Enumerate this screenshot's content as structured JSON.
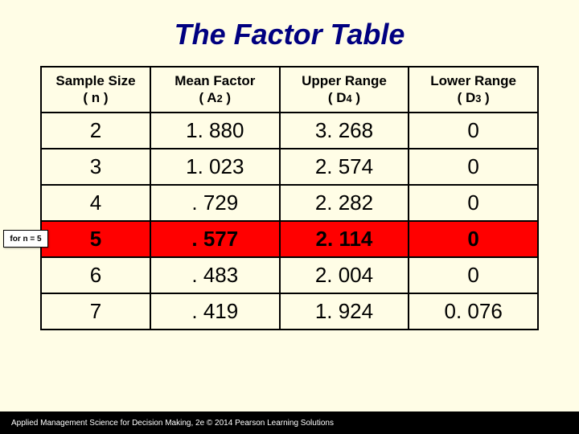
{
  "title": "The Factor Table",
  "table": {
    "columns": [
      {
        "line1": "Sample Size",
        "line2_pre": "( n )",
        "sub": ""
      },
      {
        "line1": "Mean Factor",
        "line2_pre": "( A",
        "sub": "2",
        "line2_post": " )"
      },
      {
        "line1": "Upper Range",
        "line2_pre": "( D",
        "sub": "4",
        "line2_post": " )"
      },
      {
        "line1": "Lower Range",
        "line2_pre": "( D",
        "sub": "3",
        "line2_post": " )"
      }
    ],
    "rows": [
      {
        "n": "2",
        "a2": "1. 880",
        "d4": "3. 268",
        "d3": "0",
        "highlight": false
      },
      {
        "n": "3",
        "a2": "1. 023",
        "d4": "2. 574",
        "d3": "0",
        "highlight": false
      },
      {
        "n": "4",
        "a2": ". 729",
        "d4": "2. 282",
        "d3": "0",
        "highlight": false
      },
      {
        "n": "5",
        "a2": ". 577",
        "d4": "2. 114",
        "d3": "0",
        "highlight": true
      },
      {
        "n": "6",
        "a2": ". 483",
        "d4": "2. 004",
        "d3": "0",
        "highlight": false
      },
      {
        "n": "7",
        "a2": ". 419",
        "d4": "1. 924",
        "d3": "0. 076",
        "highlight": false
      }
    ],
    "col_widths": [
      "22%",
      "26%",
      "26%",
      "26%"
    ],
    "highlight_color": "#ff0000",
    "background_color": "#fffde6",
    "border_color": "#000000",
    "header_fontsize": 17,
    "cell_fontsize": 26
  },
  "callout": {
    "text": "for n = 5",
    "row_index": 3
  },
  "footer": "Applied Management Science for Decision Making, 2e © 2014 Pearson Learning Solutions",
  "colors": {
    "title": "#000080",
    "page_bg": "#fffde6",
    "footer_bg": "#000000",
    "footer_text": "#ffffff"
  }
}
